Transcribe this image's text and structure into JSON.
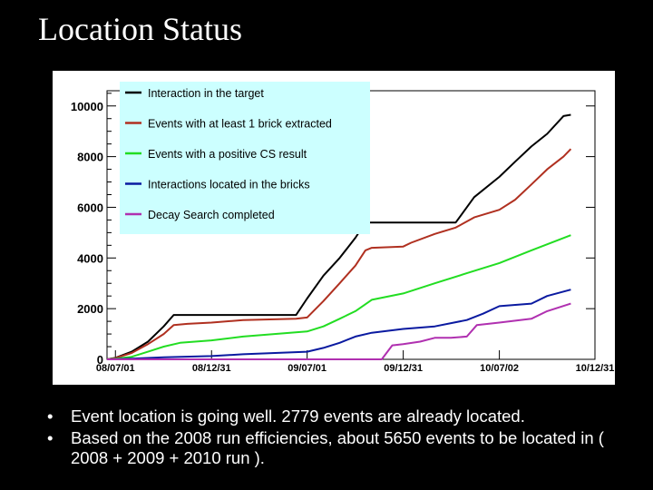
{
  "slide": {
    "title": "Location Status"
  },
  "bullets": [
    "Event location is going well. 2779 events are already located.",
    "Based on the 2008 run efficiencies, about 5650 events to be located in ( 2008 + 2009 + 2010 run )."
  ],
  "colors": {
    "background": "#000000",
    "plot_background": "#ffffff",
    "legend_background": "#ccffff"
  },
  "chart_data": {
    "type": "line",
    "title": "",
    "xlabel": "",
    "ylabel": "",
    "xlim": [
      "08/06/15",
      "10/12/31"
    ],
    "ylim": [
      0,
      10600
    ],
    "grid": false,
    "legend_position": "top-left",
    "y_ticks": [
      0,
      2000,
      4000,
      6000,
      8000,
      10000
    ],
    "y_tick_labels": [
      "0",
      "2000",
      "4000",
      "6000",
      "8000",
      "10000"
    ],
    "x_ticks": [
      "08/07/01",
      "08/12/31",
      "09/07/01",
      "09/12/31",
      "10/07/02",
      "10/12/31"
    ],
    "x_tick_labels": [
      "08/07/01",
      "08/12/31",
      "09/07/01",
      "09/12/31",
      "10/07/02",
      "10/12/31"
    ],
    "series": [
      {
        "name": "Interaction in the target",
        "color": "#000000",
        "x": [
          "08/06/15",
          "08/07/01",
          "08/08/01",
          "08/09/01",
          "08/10/01",
          "08/10/20",
          "08/11/15",
          "08/12/31",
          "09/03/01",
          "09/06/10",
          "09/07/01",
          "09/08/01",
          "09/09/01",
          "09/10/01",
          "09/10/20",
          "09/12/31",
          "10/03/01",
          "10/04/10",
          "10/05/15",
          "10/07/02",
          "10/08/01",
          "10/09/01",
          "10/10/01",
          "10/11/01",
          "10/11/15"
        ],
        "y": [
          0,
          60,
          300,
          700,
          1300,
          1750,
          1750,
          1750,
          1750,
          1750,
          2400,
          3300,
          4000,
          4800,
          5400,
          5400,
          5400,
          5400,
          6400,
          7200,
          7800,
          8400,
          8900,
          9600,
          9650
        ]
      },
      {
        "name": "Events with at least 1 brick extracted",
        "color": "#b03020",
        "x": [
          "08/06/15",
          "08/07/01",
          "08/08/01",
          "08/09/01",
          "08/10/01",
          "08/10/20",
          "08/11/15",
          "08/12/31",
          "09/03/01",
          "09/06/10",
          "09/07/01",
          "09/08/01",
          "09/09/01",
          "09/10/01",
          "09/10/20",
          "09/11/01",
          "09/12/31",
          "10/01/15",
          "10/03/01",
          "10/04/10",
          "10/05/15",
          "10/07/02",
          "10/08/01",
          "10/09/01",
          "10/10/01",
          "10/11/01",
          "10/11/15"
        ],
        "y": [
          0,
          50,
          250,
          600,
          1000,
          1350,
          1400,
          1450,
          1550,
          1600,
          1650,
          2300,
          3000,
          3700,
          4300,
          4400,
          4450,
          4600,
          4950,
          5200,
          5600,
          5900,
          6300,
          6900,
          7500,
          8000,
          8300
        ]
      },
      {
        "name": "Events with a positive CS result",
        "color": "#22dd22",
        "x": [
          "08/06/15",
          "08/07/01",
          "08/08/01",
          "08/09/01",
          "08/10/01",
          "08/11/01",
          "08/12/31",
          "09/03/01",
          "09/07/01",
          "09/08/01",
          "09/09/01",
          "09/10/01",
          "09/11/01",
          "09/12/31",
          "10/03/01",
          "10/05/01",
          "10/07/02",
          "10/09/01",
          "10/11/15"
        ],
        "y": [
          0,
          20,
          100,
          300,
          500,
          650,
          750,
          900,
          1100,
          1300,
          1600,
          1900,
          2350,
          2600,
          3000,
          3400,
          3800,
          4300,
          4900
        ]
      },
      {
        "name": "Interactions located in the bricks",
        "color": "#0a1aa0",
        "x": [
          "08/06/15",
          "08/08/01",
          "08/10/01",
          "08/12/31",
          "09/03/01",
          "09/07/01",
          "09/08/01",
          "09/09/01",
          "09/10/01",
          "09/11/01",
          "09/12/31",
          "10/03/01",
          "10/05/01",
          "10/06/01",
          "10/07/02",
          "10/09/01",
          "10/10/01",
          "10/11/15"
        ],
        "y": [
          0,
          30,
          80,
          130,
          200,
          300,
          450,
          650,
          900,
          1050,
          1200,
          1300,
          1550,
          1800,
          2100,
          2200,
          2500,
          2750
        ]
      },
      {
        "name": "Decay Search completed",
        "color": "#b030b0",
        "x": [
          "08/06/15",
          "09/07/01",
          "09/11/20",
          "09/12/01",
          "09/12/10",
          "09/12/31",
          "10/02/01",
          "10/03/01",
          "10/04/01",
          "10/05/01",
          "10/05/20",
          "10/07/02",
          "10/09/01",
          "10/10/01",
          "10/11/15"
        ],
        "y": [
          0,
          0,
          0,
          300,
          550,
          600,
          700,
          850,
          850,
          900,
          1350,
          1450,
          1600,
          1900,
          2200
        ]
      }
    ]
  }
}
